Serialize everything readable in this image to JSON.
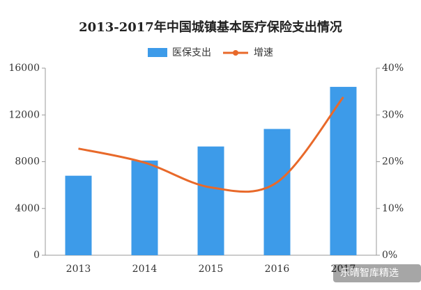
{
  "chart_data": {
    "type": "combo",
    "title": "2013-2017年中国城镇基本医疗保险支出情况",
    "categories": [
      "2013",
      "2014",
      "2015",
      "2016",
      "2017"
    ],
    "series": [
      {
        "name": "医保支出",
        "type": "bar",
        "color": "#3d9be9",
        "values": [
          6800,
          8100,
          9300,
          10800,
          14400
        ]
      },
      {
        "name": "增速",
        "type": "line",
        "axis": "y2",
        "color": "#e8692a",
        "values": [
          22.8,
          19.8,
          14.5,
          15.6,
          33.8
        ]
      }
    ],
    "ylim": [
      0,
      16000
    ],
    "yticks": [
      0,
      4000,
      8000,
      12000,
      16000
    ],
    "y2lim": [
      0,
      40
    ],
    "y2ticks": [
      {
        "value": 0,
        "label": "0%"
      },
      {
        "value": 10,
        "label": "10%"
      },
      {
        "value": 20,
        "label": "20%"
      },
      {
        "value": 30,
        "label": "30%"
      },
      {
        "value": 40,
        "label": "40%"
      }
    ],
    "legend": "top",
    "watermark": "乐晴智库精选"
  }
}
